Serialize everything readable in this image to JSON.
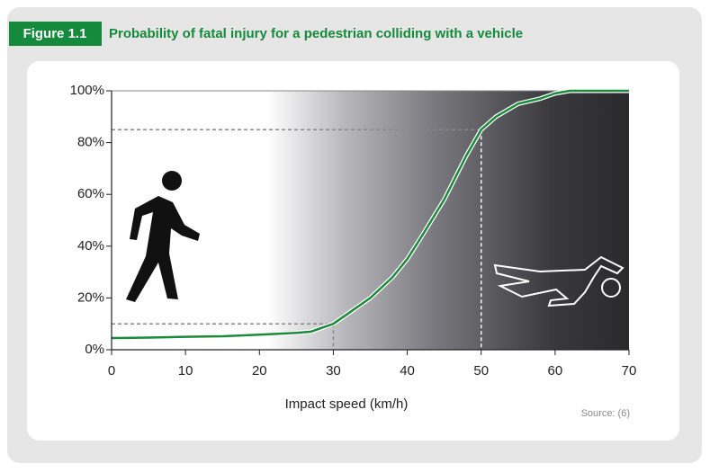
{
  "figure_label": "Figure 1.1",
  "chart_data": {
    "type": "line",
    "title": "Probability of fatal injury for a pedestrian colliding with a vehicle",
    "x_label": "Impact speed (km/h)",
    "source": "Source: (6)",
    "x": [
      0,
      5,
      10,
      15,
      20,
      25,
      27,
      30,
      32,
      35,
      38,
      40,
      42,
      45,
      48,
      50,
      52,
      55,
      58,
      60,
      62,
      65,
      70
    ],
    "series": [
      {
        "color": "#1b8a3a",
        "values": [
          4.5,
          4.7,
          5,
          5.2,
          5.8,
          6.5,
          7,
          10,
          14,
          20,
          28,
          35,
          44,
          58,
          75,
          85,
          90,
          95,
          97,
          99,
          100,
          100,
          100
        ]
      }
    ],
    "reference_points": [
      {
        "x": 30,
        "y": 10
      },
      {
        "x": 50,
        "y": 85
      }
    ],
    "xlim": [
      0,
      70
    ],
    "xticks": [
      0,
      10,
      20,
      30,
      40,
      50,
      60,
      70
    ],
    "ylim": [
      0,
      100
    ],
    "yticks": [
      {
        "value": 0,
        "label": "0%"
      },
      {
        "value": 20,
        "label": "20%"
      },
      {
        "value": 40,
        "label": "40%"
      },
      {
        "value": 60,
        "label": "60%"
      },
      {
        "value": 80,
        "label": "80%"
      },
      {
        "value": 100,
        "label": "100%"
      }
    ]
  }
}
